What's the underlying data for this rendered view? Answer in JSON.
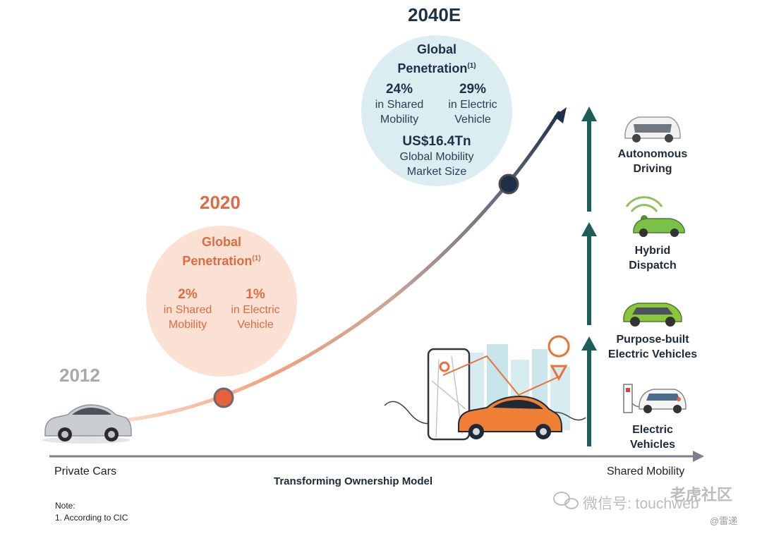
{
  "years": {
    "y2012": "2012",
    "y2020": "2020",
    "y2040": "2040E"
  },
  "circle_2020": {
    "title_line1": "Global",
    "title_line2": "Penetration",
    "footnote_ref": "(1)",
    "stat_left": {
      "pct": "2%",
      "label": "in Shared\nMobility"
    },
    "stat_right": {
      "pct": "1%",
      "label": "in Electric\nVehicle"
    }
  },
  "circle_2040": {
    "title_line1": "Global",
    "title_line2": "Penetration",
    "footnote_ref": "(1)",
    "stat_left": {
      "pct": "24%",
      "label": "in Shared\nMobility"
    },
    "stat_right": {
      "pct": "29%",
      "label": "in Electric\nVehicle"
    },
    "market_value": "US$16.4Tn",
    "market_label": "Global Mobility\nMarket Size"
  },
  "stages": [
    {
      "label": "Autonomous\nDriving"
    },
    {
      "label": "Hybrid\nDispatch"
    },
    {
      "label": "Purpose-built\nElectric Vehicles"
    },
    {
      "label": "Electric\nVehicles"
    }
  ],
  "axis": {
    "left_label": "Private Cars",
    "right_label": "Shared Mobility",
    "title": "Transforming Ownership Model"
  },
  "note": {
    "heading": "Note:",
    "items": [
      "1.     According to CIC"
    ]
  },
  "watermark": {
    "wechat": "微信号: touchweb",
    "brand": "老虎社区",
    "handle": "@雷递"
  },
  "colors": {
    "orange": "#e06a42",
    "navy": "#1d3048",
    "teal": "#1e5e58",
    "grey_year": "#a9a9a9"
  }
}
